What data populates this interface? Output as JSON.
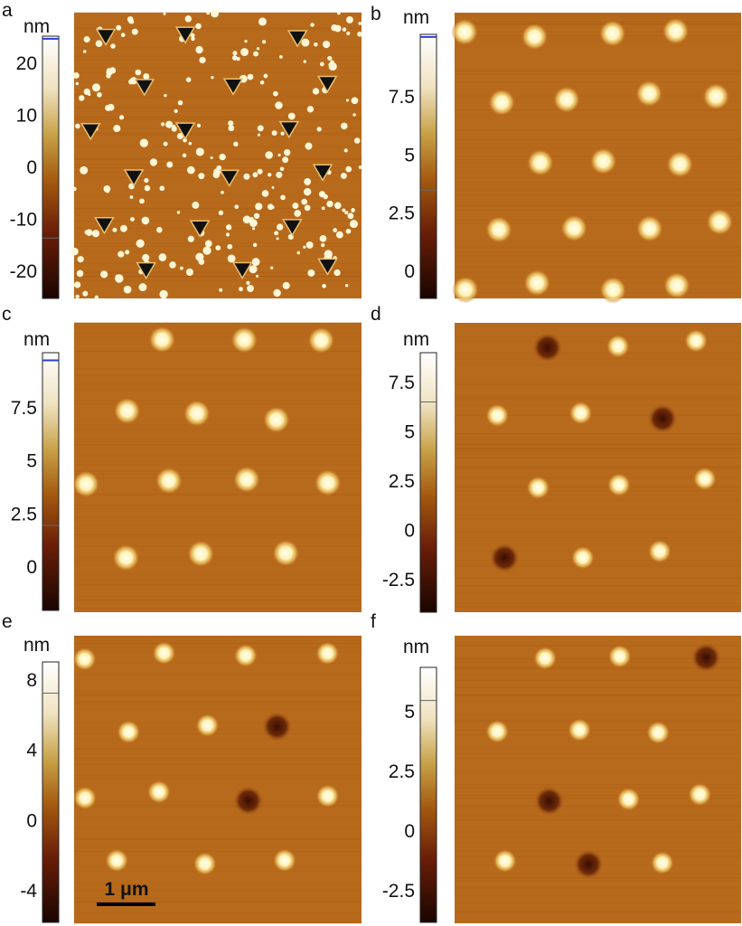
{
  "panels": [
    {
      "label": "a",
      "unit": "nm",
      "ticks": [
        20,
        10,
        0,
        -10,
        -20
      ]
    },
    {
      "label": "b",
      "unit": "nm",
      "ticks": [
        7.5,
        5,
        2.5,
        0
      ]
    },
    {
      "label": "c",
      "unit": "nm",
      "ticks": [
        7.5,
        5,
        2.5,
        0
      ]
    },
    {
      "label": "d",
      "unit": "nm",
      "ticks": [
        7.5,
        5,
        2.5,
        0,
        -2.5
      ]
    },
    {
      "label": "e",
      "unit": "nm",
      "ticks": [
        8,
        4,
        0,
        -4
      ]
    },
    {
      "label": "f",
      "unit": "nm",
      "ticks": [
        5,
        2.5,
        0,
        -2.5
      ]
    }
  ],
  "scale_bar": "1 μm"
}
